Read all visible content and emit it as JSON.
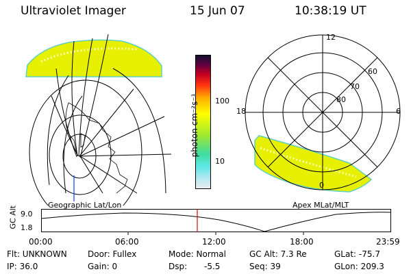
{
  "header": {
    "title": "Ultraviolet Imager",
    "date": "15 Jun 07",
    "time": "10:38:19 UT"
  },
  "geo_panel": {
    "label": "Geographic Lat/Lon"
  },
  "apex_panel": {
    "label": "Apex MLat/MLT",
    "mlt_labels": [
      "12",
      "18",
      "6",
      "0"
    ],
    "mlat_labels": [
      "60",
      "70",
      "80"
    ]
  },
  "colorbar": {
    "unit_label": "photon cm⁻²s⁻¹",
    "ticks": [
      "100",
      "10"
    ],
    "scale": "log",
    "colors": [
      "#e9eef2",
      "#60e8e8",
      "#3fdca0",
      "#a0e830",
      "#ffff00",
      "#ffb000",
      "#ff3010",
      "#c00020",
      "#600040",
      "#101030"
    ]
  },
  "gc_alt_strip": {
    "ylabel": "GC Alt",
    "y_ticks": [
      "9.0",
      "1.8"
    ],
    "x_ticks": [
      "00:00",
      "06:00",
      "12:00",
      "18:00",
      "23:59"
    ],
    "current_time_marker_color": "#e00000"
  },
  "status": {
    "flt": "Flt: UNKNOWN",
    "ip": "IP: 36.0",
    "door": "Door: Fullex",
    "gain": "Gain:  0",
    "mode": "Mode: Normal",
    "dsp": "Dsp:",
    "dsp_value": "-5.5",
    "gc_alt": "GC Alt: 7.3 Re",
    "seq": "Seq: 39",
    "glat": "GLat: -75.7",
    "glon": "GLon: 209.3"
  }
}
